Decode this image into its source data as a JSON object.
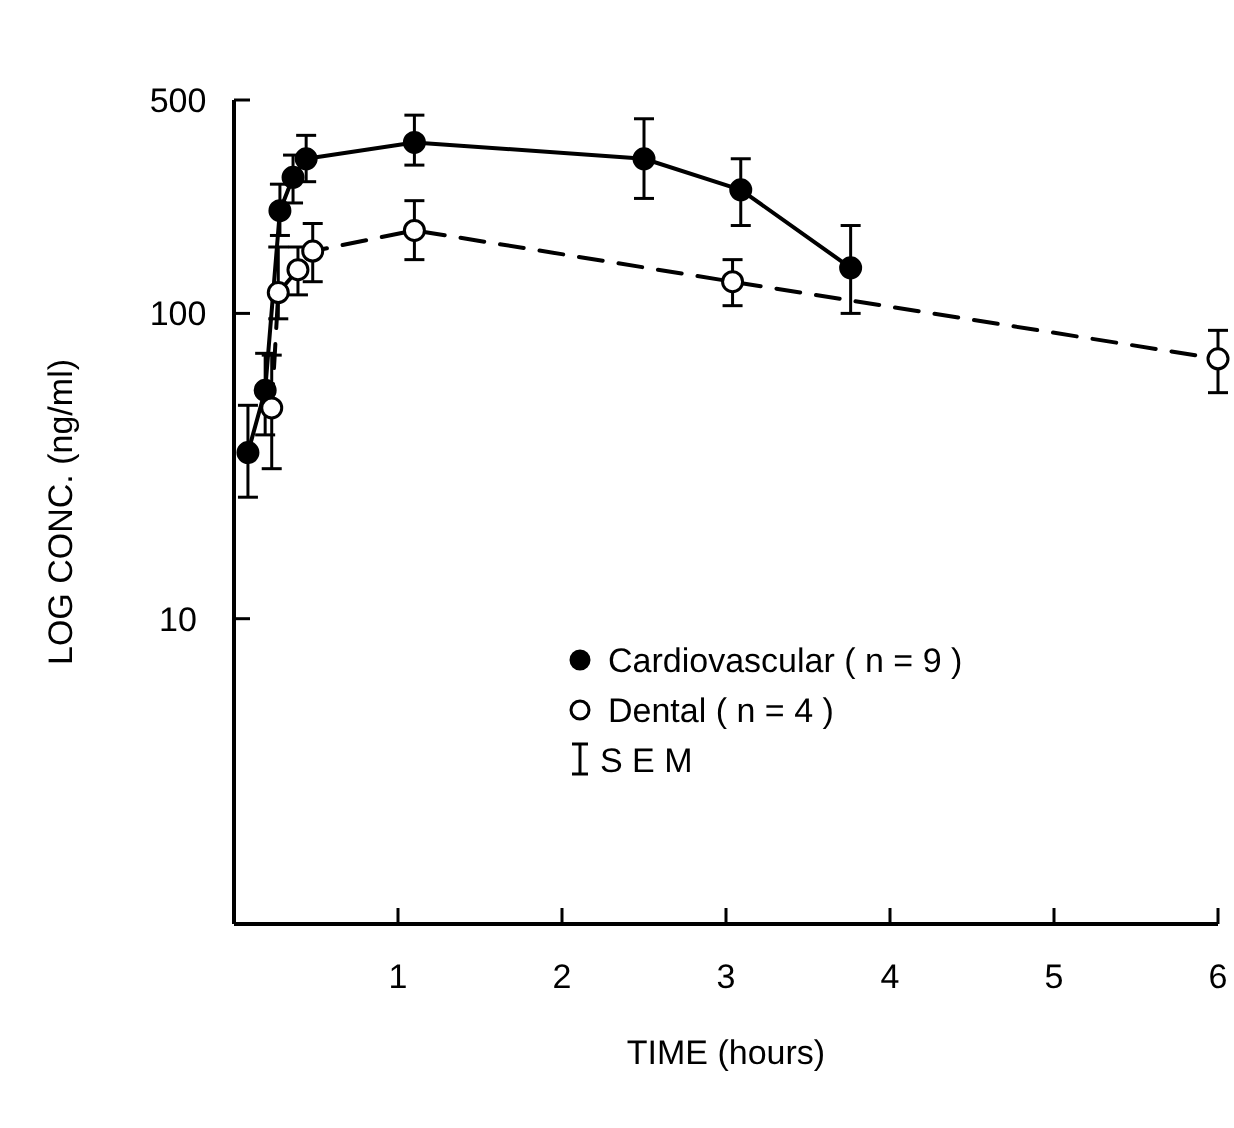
{
  "chart_data": {
    "type": "line",
    "xlabel": "TIME  (hours)",
    "ylabel": "LOG CONC.  (ng/ml)",
    "log": "y",
    "xlim": [
      0,
      6
    ],
    "xticks": [
      1,
      2,
      3,
      4,
      5,
      6
    ],
    "ylim": [
      1,
      500
    ],
    "yticks": [
      10,
      100,
      500
    ],
    "grid": false,
    "legend": "right",
    "marker": "circle",
    "annotations": [
      "S E M"
    ],
    "series": [
      {
        "name": "Cardiovascular ( n = 9 )",
        "color": "#000000",
        "line_style": "solid",
        "x": [
          0.085,
          0.19,
          0.28,
          0.36,
          0.44,
          1.1,
          2.5,
          3.09,
          3.76
        ],
        "values": [
          35,
          56,
          217,
          279,
          321,
          363,
          321,
          254,
          141
        ],
        "errors": [
          [
            25,
            50
          ],
          [
            40,
            74
          ],
          [
            180,
            265
          ],
          [
            230,
            330
          ],
          [
            270,
            383
          ],
          [
            306,
            446
          ],
          [
            238,
            434
          ],
          [
            194,
            321
          ],
          [
            100,
            194
          ]
        ]
      },
      {
        "name": "Dental ( n = 4 )",
        "color": "#000000",
        "line_style": "dashed",
        "x": [
          0.23,
          0.27,
          0.39,
          0.48,
          1.1,
          3.04,
          6
        ],
        "values": [
          49,
          117,
          139,
          160,
          187,
          127,
          71
        ],
        "errors": [
          [
            31,
            73
          ],
          [
            96,
            165
          ],
          [
            115,
            165
          ],
          [
            127,
            197
          ],
          [
            150,
            234
          ],
          [
            106,
            150
          ],
          [
            55,
            88
          ]
        ]
      }
    ]
  }
}
